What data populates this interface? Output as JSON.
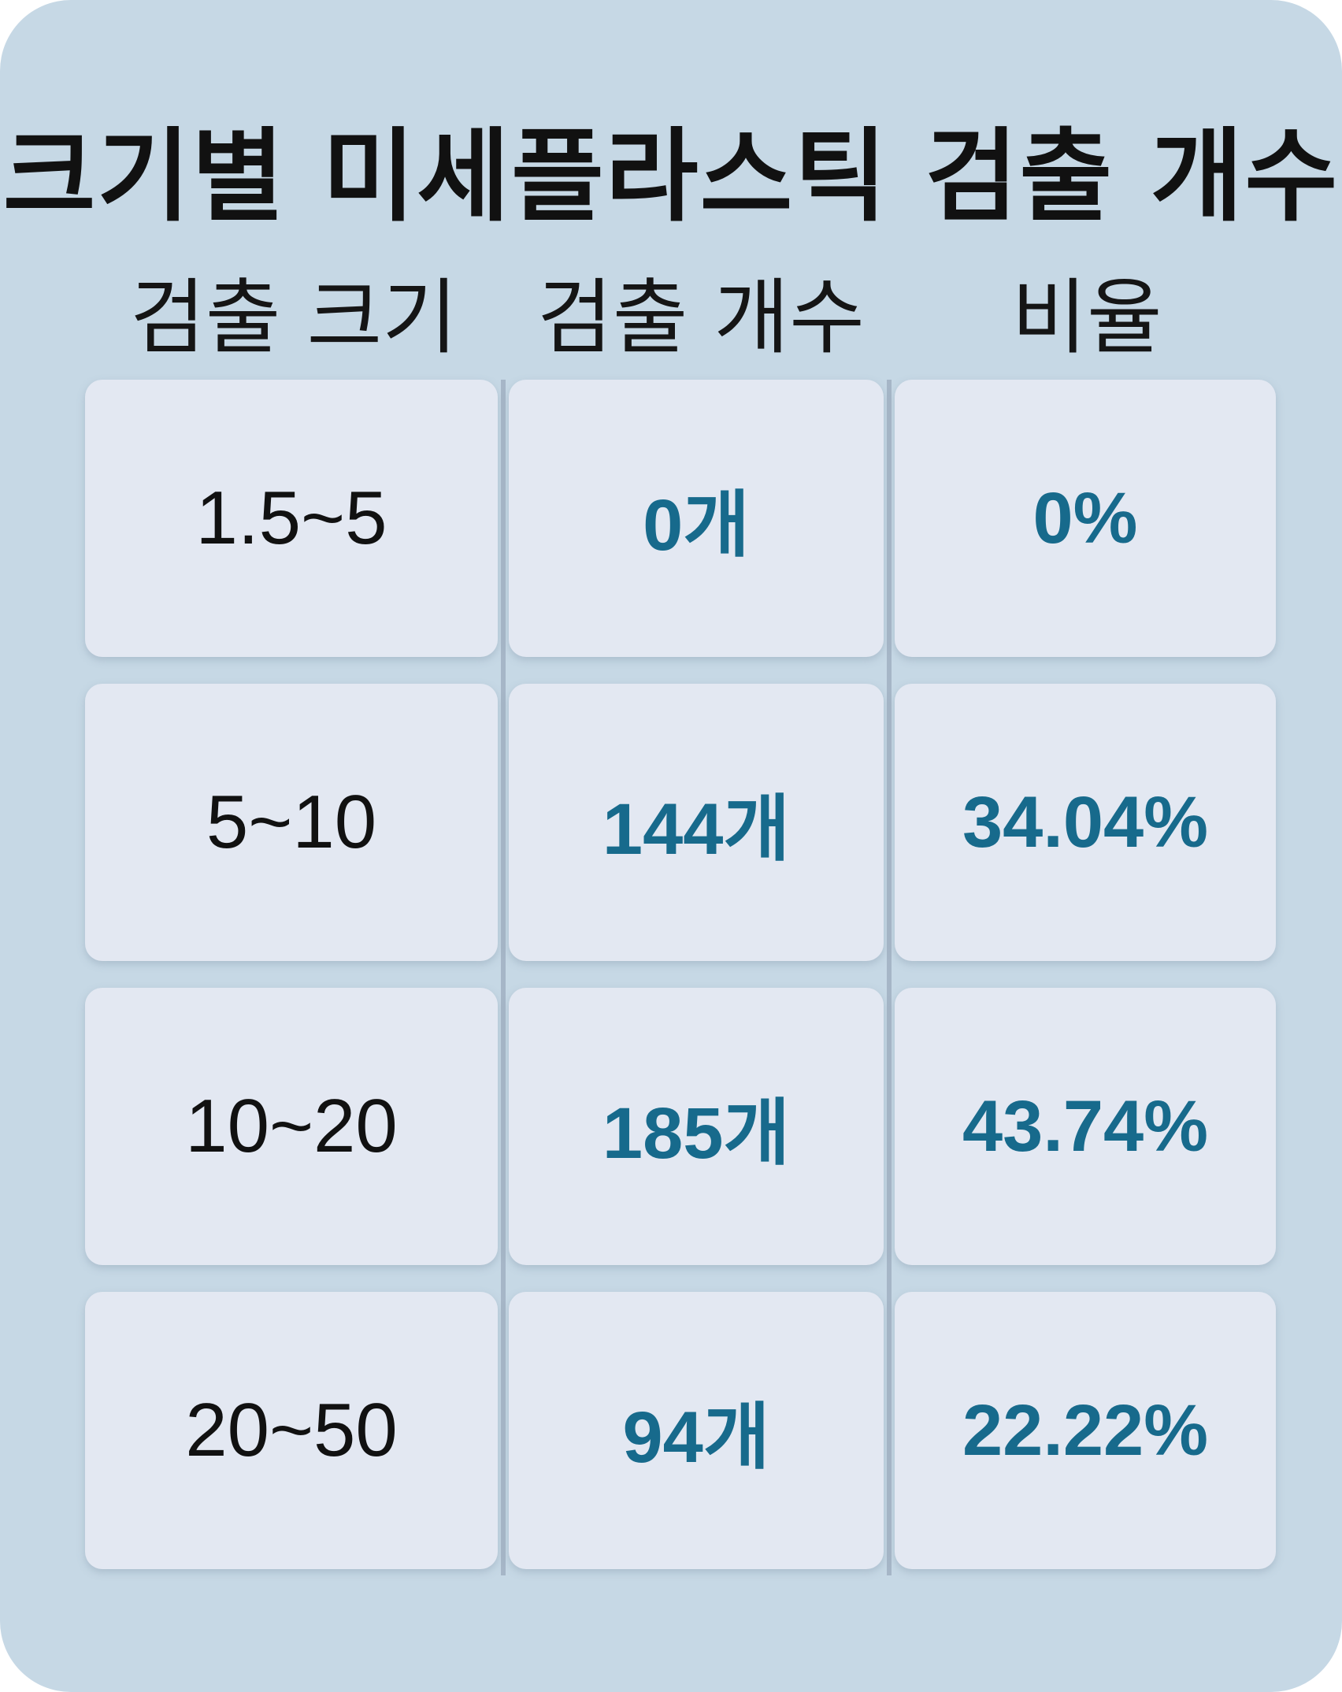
{
  "title": "크기별 미세플라스틱 검출 개수",
  "headers": {
    "size": "검출 크기",
    "count": "검출 개수",
    "ratio": "비율"
  },
  "rows": [
    {
      "size": "1.5~5",
      "count": "0개",
      "ratio": "0%"
    },
    {
      "size": "5~10",
      "count": "144개",
      "ratio": "34.04%"
    },
    {
      "size": "10~20",
      "count": "185개",
      "ratio": "43.74%"
    },
    {
      "size": "20~50",
      "count": "94개",
      "ratio": "22.22%"
    }
  ],
  "colors": {
    "background": "#c6d8e5",
    "cell": "#e3e8f2",
    "value_accent": "#176a8c",
    "text": "#111111"
  }
}
